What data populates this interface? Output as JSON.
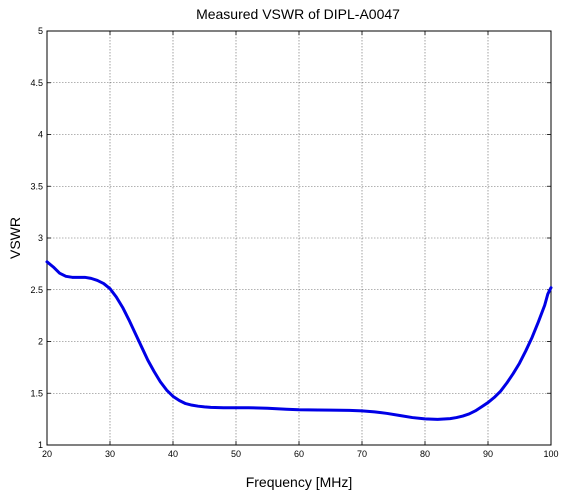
{
  "chart_data": {
    "type": "line",
    "title": "Measured VSWR of DIPL-A0047",
    "xlabel": "Frequency [MHz]",
    "ylabel": "VSWR",
    "xlim": [
      20,
      100
    ],
    "ylim": [
      1,
      5
    ],
    "x_ticks": [
      20,
      30,
      40,
      50,
      60,
      70,
      80,
      90,
      100
    ],
    "y_ticks": [
      1,
      1.5,
      2,
      2.5,
      3,
      3.5,
      4,
      4.5,
      5
    ],
    "x_tick_labels": [
      "20",
      "30",
      "40",
      "50",
      "60",
      "70",
      "80",
      "90",
      "100"
    ],
    "y_tick_labels": [
      "1",
      "1.5",
      "2",
      "2.5",
      "3",
      "3.5",
      "4",
      "4.5",
      "5"
    ],
    "grid": true,
    "line_color": "#0000e6",
    "series": [
      {
        "x": [
          20,
          21,
          22,
          23,
          24,
          25,
          26,
          27,
          28,
          29,
          30,
          31,
          32,
          33,
          34,
          35,
          36,
          37,
          38,
          39,
          40,
          41,
          42,
          43,
          44,
          45,
          46,
          48,
          50,
          52,
          55,
          58,
          60,
          63,
          65,
          68,
          70,
          72,
          74,
          76,
          78,
          80,
          82,
          84,
          85,
          86,
          87,
          88,
          89,
          90,
          91,
          92,
          93,
          94,
          95,
          96,
          97,
          98,
          99,
          99.5,
          100
        ],
        "y": [
          2.77,
          2.72,
          2.66,
          2.63,
          2.62,
          2.62,
          2.62,
          2.61,
          2.59,
          2.56,
          2.51,
          2.43,
          2.33,
          2.21,
          2.08,
          1.95,
          1.82,
          1.71,
          1.61,
          1.53,
          1.47,
          1.43,
          1.4,
          1.385,
          1.375,
          1.368,
          1.364,
          1.36,
          1.36,
          1.36,
          1.355,
          1.345,
          1.34,
          1.338,
          1.337,
          1.335,
          1.33,
          1.32,
          1.305,
          1.285,
          1.265,
          1.252,
          1.248,
          1.255,
          1.265,
          1.28,
          1.3,
          1.33,
          1.37,
          1.41,
          1.46,
          1.52,
          1.6,
          1.69,
          1.79,
          1.91,
          2.04,
          2.19,
          2.35,
          2.46,
          2.52
        ]
      }
    ]
  }
}
